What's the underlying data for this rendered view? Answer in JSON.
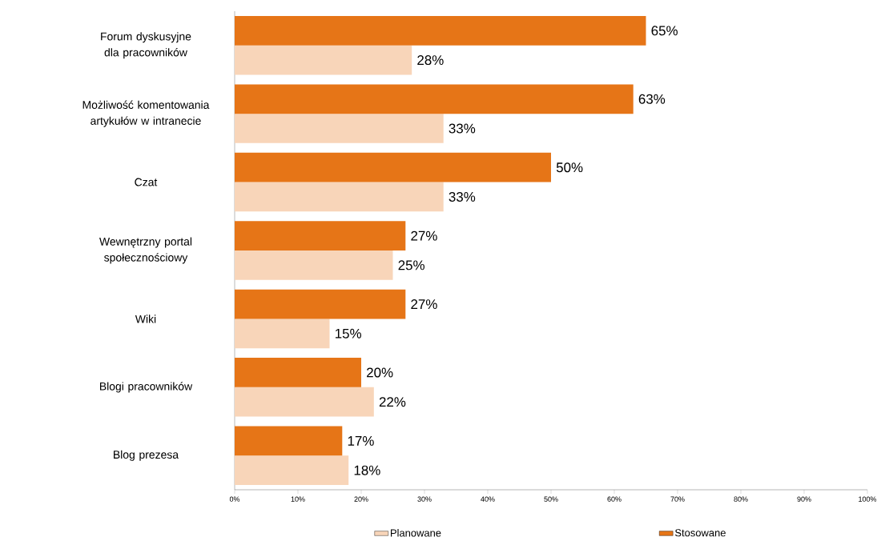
{
  "chart_data": {
    "type": "bar",
    "orientation": "horizontal",
    "categories": [
      "Forum dyskusyjne dla pracowników",
      "Możliwość komentowania artykułów w intranecie",
      "Czat",
      "Wewnętrzny portal społecznościowy",
      "Wiki",
      "Blogi pracowników",
      "Blog prezesa"
    ],
    "series": [
      {
        "name": "Planowane",
        "color": "#f8d5b9",
        "values": [
          28,
          33,
          33,
          25,
          15,
          22,
          18
        ],
        "value_labels": [
          "28%",
          "33%",
          "33%",
          "25%",
          "15%",
          "22%",
          "18%"
        ]
      },
      {
        "name": "Stosowane",
        "color": "#e67517",
        "values": [
          65,
          63,
          50,
          27,
          27,
          20,
          17
        ],
        "value_labels": [
          "65%",
          "63%",
          "50%",
          "27%",
          "27%",
          "20%",
          "17%"
        ]
      }
    ],
    "xlim": [
      0,
      100
    ],
    "xticks": [
      {
        "value": 0,
        "label": "0%"
      },
      {
        "value": 10,
        "label": "10%"
      },
      {
        "value": 20,
        "label": "20%"
      },
      {
        "value": 30,
        "label": "30%"
      },
      {
        "value": 40,
        "label": "40%"
      },
      {
        "value": 50,
        "label": "50%"
      },
      {
        "value": 60,
        "label": "60%"
      },
      {
        "value": 70,
        "label": "70%"
      },
      {
        "value": 80,
        "label": "80%"
      },
      {
        "value": 90,
        "label": "90%"
      },
      {
        "value": 100,
        "label": "100%"
      }
    ],
    "legend": "bottom",
    "grid": false
  }
}
